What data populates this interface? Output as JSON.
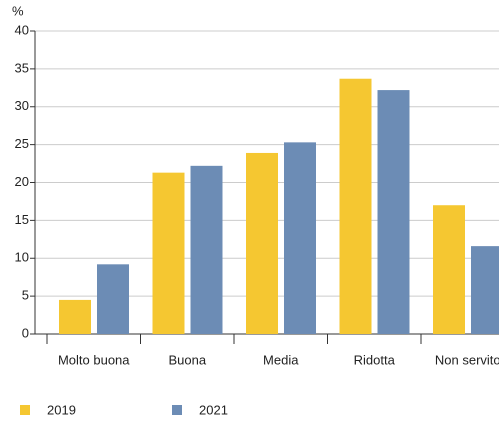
{
  "chart_data": {
    "type": "bar",
    "y_label": "%",
    "categories": [
      "Molto buona",
      "Buona",
      "Media",
      "Ridotta",
      "Non servito"
    ],
    "series": [
      {
        "name": "2019",
        "color": "#f5c731",
        "values": [
          4.5,
          21.3,
          23.9,
          33.7,
          17.0
        ]
      },
      {
        "name": "2021",
        "color": "#6c8cb5",
        "values": [
          9.2,
          22.2,
          25.3,
          32.2,
          11.6
        ]
      }
    ],
    "ylim": [
      0,
      40
    ],
    "yticks": [
      0,
      5,
      10,
      15,
      20,
      25,
      30,
      35,
      40
    ],
    "grid": true
  }
}
